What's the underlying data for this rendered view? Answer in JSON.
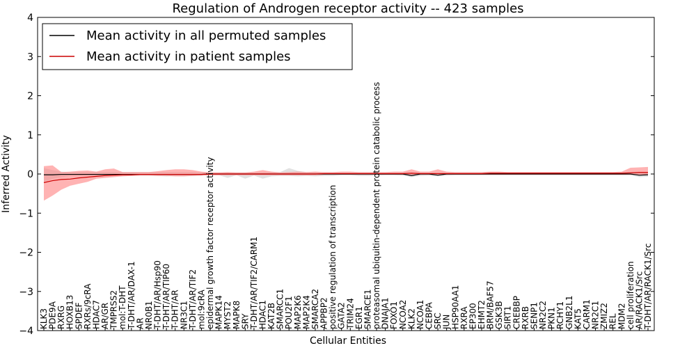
{
  "chart_data": {
    "type": "line",
    "title": "Regulation of Androgen receptor activity -- 423 samples",
    "xlabel": "Cellular Entities",
    "ylabel": "Inferred Activity",
    "ylim": [
      -4,
      4
    ],
    "yticks": [
      -4,
      -3,
      -2,
      -1,
      0,
      1,
      2,
      3,
      4
    ],
    "ytick_labels": [
      "−4",
      "−3",
      "−2",
      "−1",
      "0",
      "1",
      "2",
      "3",
      "4"
    ],
    "grid": false,
    "legend_position": "top-left",
    "categories": [
      "KLK3",
      "PDE9A",
      "RXRG",
      "HOXB13",
      "SPDEF",
      "RXRs/9cRA",
      "HDAC7",
      "AR/GR",
      "TMPRSS2",
      "mol:T-DHT",
      "T-DHT/AR/DAX-1",
      "AR",
      "NR0B1",
      "T-DHT/AR/Hsp90",
      "T-DHT/AR/TIP60",
      "T-DHT/AR",
      "NR3C1",
      "T-DHT/AR/TIF2",
      "mol:9cRA",
      "epidermal growth factor receptor activity",
      "MAPK14",
      "MYST2",
      "MAPK8",
      "SRY",
      "T-DHT/AR/TIF2/CARM1",
      "HDAC1",
      "KAT2B",
      "SMARCC1",
      "POU2F1",
      "MAP2K6",
      "MAP2K4",
      "SMARCA2",
      "APPBP2",
      "positive regulation of transcription",
      "GATA2",
      "TRIM24",
      "EGR1",
      "SMARCE1",
      "proteasomal ubiquitin-dependent protein catabolic process",
      "DNAJA1",
      "FOXO1",
      "NCOA2",
      "KLK2",
      "NCOA1",
      "CEBPA",
      "SRC",
      "JUN",
      "HSP90AA1",
      "RXRA",
      "EP300",
      "EHMT2",
      "BRM/BAF57",
      "GSK3B",
      "SIRT1",
      "CREBBP",
      "RXRB",
      "SENP1",
      "NR2C2",
      "PKN1",
      "RCHY1",
      "GNB2L1",
      "KAT5",
      "CARM1",
      "NR2C1",
      "ZMIZ2",
      "REL",
      "MDM2",
      "cell proliferation",
      "AR/RACK1/Src",
      "T-DHT/AR/RACK1/Src"
    ],
    "series": [
      {
        "name": "Mean activity in all permuted samples",
        "color": "#000000",
        "band_color": "#bfbfbf",
        "values": [
          -0.02,
          -0.02,
          -0.01,
          -0.01,
          -0.01,
          -0.01,
          -0.01,
          -0.01,
          -0.01,
          -0.01,
          -0.01,
          -0.01,
          -0.01,
          -0.01,
          -0.01,
          -0.01,
          -0.01,
          -0.01,
          -0.01,
          0.0,
          0.0,
          0.0,
          0.0,
          0.0,
          0.0,
          0.0,
          0.0,
          0.0,
          0.0,
          0.0,
          0.0,
          0.0,
          0.0,
          0.0,
          0.0,
          0.0,
          0.0,
          0.0,
          0.0,
          0.0,
          0.0,
          0.0,
          -0.04,
          0.0,
          0.0,
          -0.03,
          0.0,
          0.0,
          0.0,
          0.0,
          0.0,
          0.0,
          0.0,
          0.0,
          0.0,
          0.0,
          0.0,
          0.0,
          0.0,
          0.0,
          0.0,
          0.0,
          0.0,
          0.0,
          0.0,
          0.0,
          0.0,
          0.0,
          -0.03,
          -0.02
        ],
        "lower": [
          -0.2,
          -0.12,
          -0.08,
          -0.05,
          -0.05,
          -0.04,
          -0.04,
          -0.05,
          -0.05,
          -0.05,
          -0.05,
          -0.04,
          -0.04,
          -0.05,
          -0.06,
          -0.05,
          -0.05,
          -0.05,
          -0.04,
          -0.03,
          -0.03,
          -0.1,
          -0.03,
          -0.12,
          -0.04,
          -0.12,
          -0.06,
          -0.05,
          -0.05,
          -0.06,
          -0.05,
          -0.06,
          -0.05,
          -0.05,
          -0.03,
          -0.03,
          -0.05,
          -0.05,
          -0.04,
          -0.03,
          -0.03,
          -0.04,
          -0.08,
          -0.05,
          -0.04,
          -0.06,
          -0.04,
          -0.03,
          -0.03,
          -0.03,
          -0.03,
          -0.03,
          -0.03,
          -0.03,
          -0.03,
          -0.03,
          -0.03,
          -0.03,
          -0.03,
          -0.03,
          -0.03,
          -0.03,
          -0.03,
          -0.03,
          -0.03,
          -0.03,
          -0.03,
          -0.03,
          -0.08,
          -0.07
        ],
        "upper": [
          0.15,
          0.1,
          0.06,
          0.05,
          0.05,
          0.05,
          0.05,
          0.05,
          0.05,
          0.05,
          0.05,
          0.05,
          0.05,
          0.05,
          0.05,
          0.05,
          0.05,
          0.05,
          0.04,
          0.04,
          0.04,
          0.04,
          0.04,
          0.04,
          0.04,
          0.04,
          0.05,
          0.05,
          0.15,
          0.08,
          0.05,
          0.05,
          0.04,
          0.04,
          0.04,
          0.04,
          0.04,
          0.04,
          0.04,
          0.04,
          0.04,
          0.04,
          0.04,
          0.04,
          0.04,
          0.04,
          0.04,
          0.04,
          0.04,
          0.04,
          0.04,
          0.04,
          0.04,
          0.04,
          0.04,
          0.04,
          0.04,
          0.04,
          0.04,
          0.04,
          0.04,
          0.04,
          0.04,
          0.04,
          0.04,
          0.04,
          0.04,
          0.05,
          0.05,
          0.05
        ]
      },
      {
        "name": "Mean activity in patient samples",
        "color": "#cc0000",
        "band_color": "#ff8080",
        "values": [
          -0.22,
          -0.17,
          -0.14,
          -0.13,
          -0.1,
          -0.08,
          -0.06,
          -0.04,
          -0.03,
          -0.02,
          -0.02,
          -0.01,
          -0.01,
          -0.01,
          -0.01,
          -0.01,
          -0.01,
          -0.01,
          -0.01,
          0.0,
          0.0,
          0.0,
          0.0,
          0.0,
          0.0,
          0.0,
          0.0,
          0.0,
          0.0,
          0.0,
          0.0,
          0.0,
          0.01,
          0.01,
          0.01,
          0.01,
          0.01,
          0.01,
          0.01,
          0.01,
          0.01,
          0.01,
          0.02,
          0.01,
          0.01,
          0.01,
          0.01,
          0.01,
          0.01,
          0.01,
          0.01,
          0.02,
          0.02,
          0.02,
          0.02,
          0.02,
          0.02,
          0.02,
          0.02,
          0.02,
          0.02,
          0.02,
          0.02,
          0.02,
          0.02,
          0.02,
          0.02,
          0.03,
          0.04,
          0.04
        ],
        "lower": [
          -0.68,
          -0.55,
          -0.4,
          -0.3,
          -0.25,
          -0.2,
          -0.12,
          -0.1,
          -0.08,
          -0.06,
          -0.05,
          -0.04,
          -0.04,
          -0.05,
          -0.05,
          -0.06,
          -0.06,
          -0.05,
          -0.04,
          -0.03,
          -0.03,
          -0.03,
          -0.03,
          -0.03,
          -0.03,
          -0.03,
          -0.03,
          -0.03,
          -0.03,
          -0.03,
          -0.03,
          -0.03,
          -0.02,
          -0.02,
          -0.02,
          -0.02,
          -0.02,
          -0.02,
          -0.02,
          -0.02,
          -0.02,
          -0.02,
          -0.02,
          -0.02,
          -0.02,
          -0.02,
          -0.02,
          -0.02,
          -0.02,
          -0.02,
          -0.02,
          -0.02,
          -0.02,
          -0.02,
          -0.02,
          -0.02,
          -0.02,
          -0.02,
          -0.02,
          -0.02,
          -0.02,
          -0.02,
          -0.02,
          -0.02,
          -0.02,
          -0.02,
          -0.02,
          -0.02,
          -0.02,
          -0.02
        ],
        "upper": [
          0.2,
          0.22,
          0.05,
          0.06,
          0.08,
          0.09,
          0.06,
          0.12,
          0.14,
          0.05,
          0.05,
          0.05,
          0.05,
          0.07,
          0.1,
          0.12,
          0.12,
          0.1,
          0.06,
          0.04,
          0.04,
          0.05,
          0.04,
          0.04,
          0.06,
          0.1,
          0.06,
          0.04,
          0.05,
          0.06,
          0.05,
          0.06,
          0.05,
          0.05,
          0.06,
          0.06,
          0.05,
          0.05,
          0.05,
          0.05,
          0.06,
          0.06,
          0.12,
          0.06,
          0.06,
          0.12,
          0.06,
          0.05,
          0.05,
          0.05,
          0.05,
          0.06,
          0.06,
          0.05,
          0.05,
          0.05,
          0.05,
          0.05,
          0.05,
          0.05,
          0.05,
          0.05,
          0.05,
          0.05,
          0.05,
          0.05,
          0.06,
          0.16,
          0.17,
          0.18
        ]
      }
    ]
  }
}
